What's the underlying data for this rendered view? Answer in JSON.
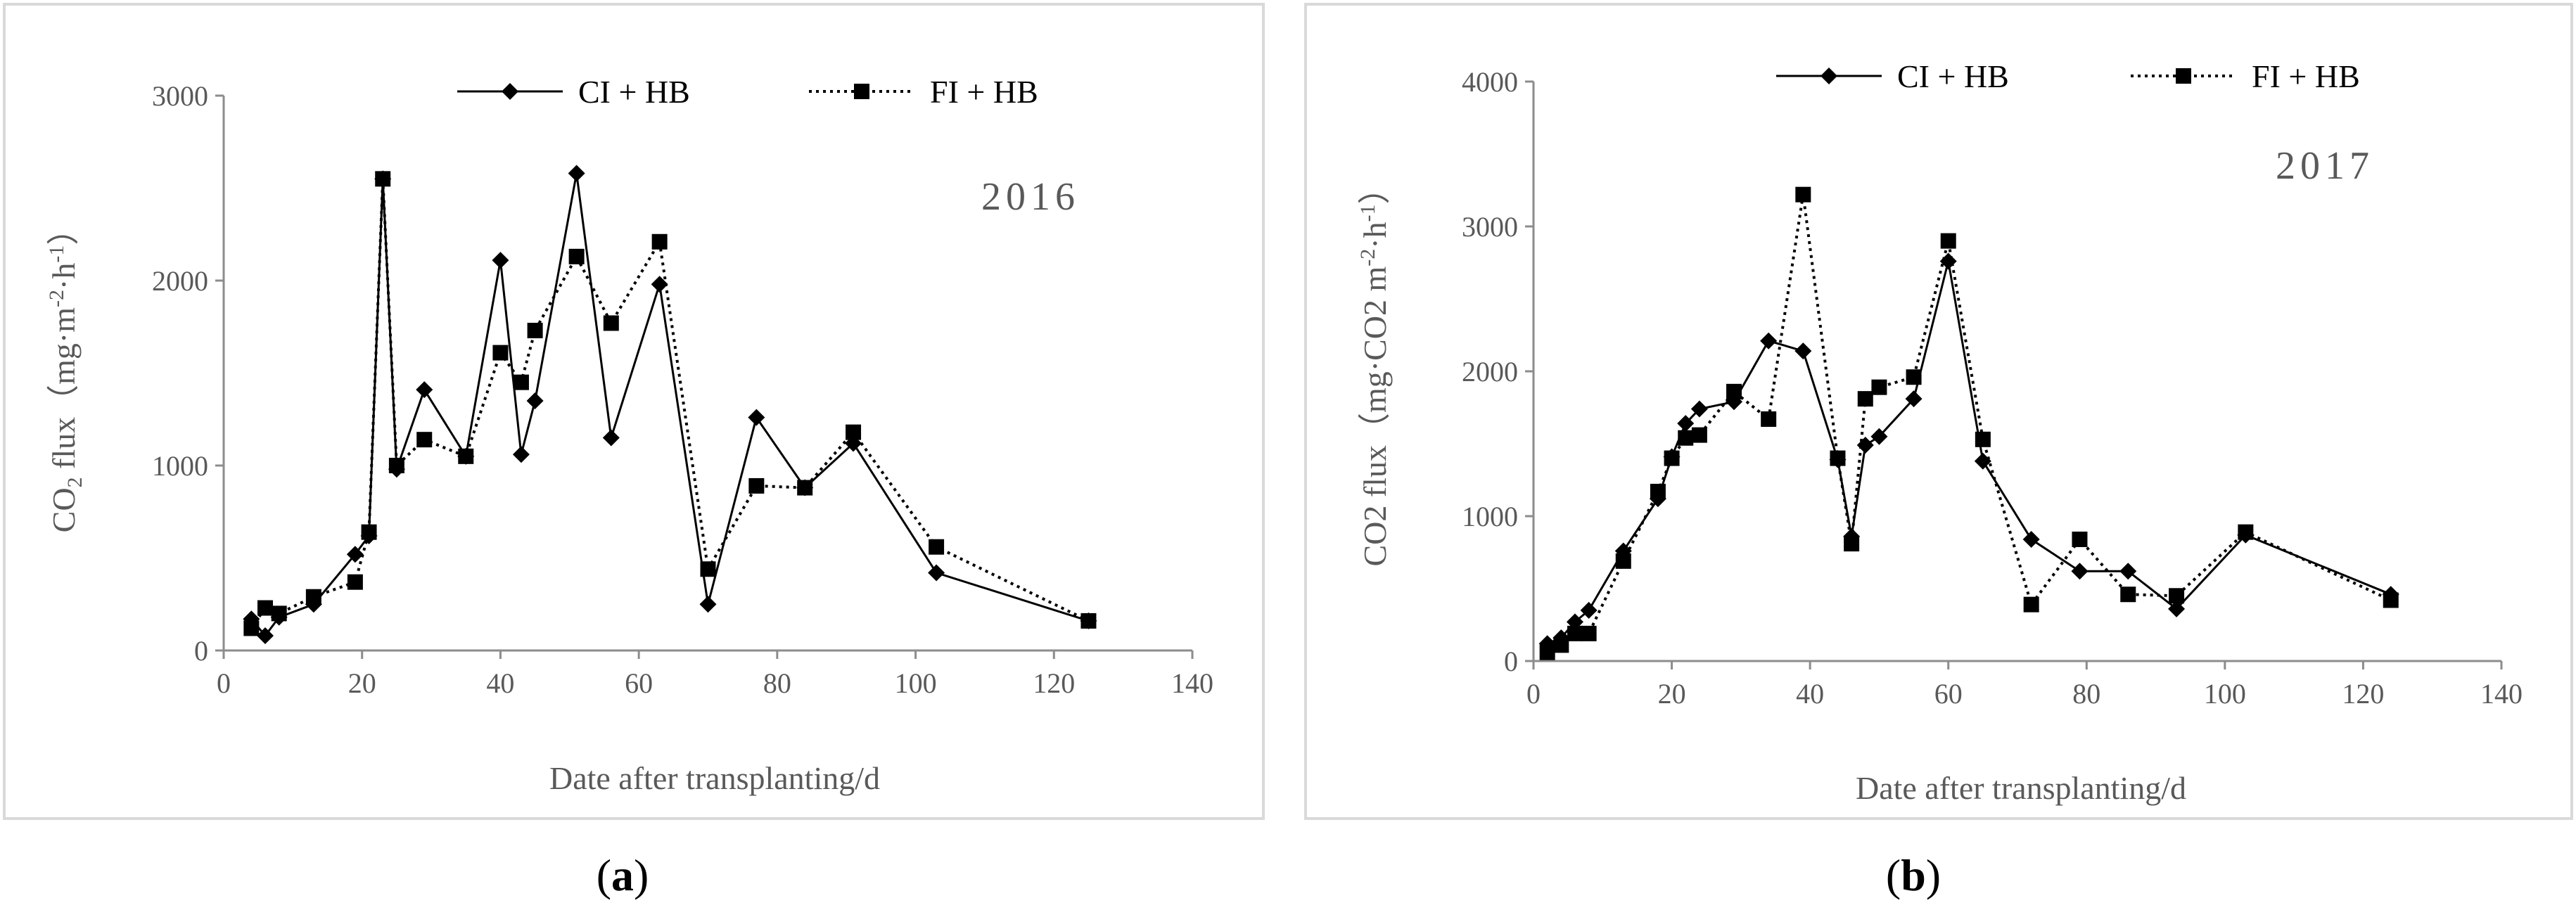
{
  "figure": {
    "border_color": "#d9d9d9",
    "axis_color": "#8c8c8c"
  },
  "chart_data": [
    {
      "type": "line",
      "panel_label": "(a)",
      "panel_label_parts": {
        "open": "(",
        "letter": "a",
        "close": ")"
      },
      "annotation": "2016",
      "xlabel": "Date after transplanting/d",
      "ylabel": {
        "prefix": "CO",
        "sub": "2",
        "middle": " flux（mg·m",
        "sup1": "-2",
        "dot": "·h",
        "sup2": "-1",
        "suffix": "）"
      },
      "xlim": [
        0,
        140
      ],
      "ylim": [
        0,
        3000
      ],
      "xticks": [
        0,
        20,
        40,
        60,
        80,
        100,
        120,
        140
      ],
      "yticks": [
        0,
        1000,
        2000,
        3000
      ],
      "grid": false,
      "legend_position": "top",
      "series": [
        {
          "name": "CI + HB",
          "marker": "diamond",
          "line": "solid",
          "color": "#000000",
          "points": [
            [
              4,
              170
            ],
            [
              6,
              80
            ],
            [
              8,
              180
            ],
            [
              13,
              250
            ],
            [
              19,
              520
            ],
            [
              21,
              620
            ],
            [
              23,
              2550
            ],
            [
              25,
              980
            ],
            [
              29,
              1410
            ],
            [
              35,
              1050
            ],
            [
              40,
              2110
            ],
            [
              43,
              1060
            ],
            [
              45,
              1350
            ],
            [
              51,
              2580
            ],
            [
              56,
              1150
            ],
            [
              63,
              1980
            ],
            [
              70,
              250
            ],
            [
              77,
              1260
            ],
            [
              84,
              880
            ],
            [
              91,
              1120
            ],
            [
              103,
              420
            ],
            [
              125,
              160
            ]
          ]
        },
        {
          "name": "FI + HB",
          "marker": "square",
          "line": "dotted",
          "color": "#000000",
          "points": [
            [
              4,
              120
            ],
            [
              6,
              230
            ],
            [
              8,
              200
            ],
            [
              13,
              290
            ],
            [
              19,
              370
            ],
            [
              21,
              640
            ],
            [
              23,
              2550
            ],
            [
              25,
              1000
            ],
            [
              29,
              1140
            ],
            [
              35,
              1050
            ],
            [
              40,
              1610
            ],
            [
              43,
              1450
            ],
            [
              45,
              1730
            ],
            [
              51,
              2130
            ],
            [
              56,
              1770
            ],
            [
              63,
              2210
            ],
            [
              70,
              440
            ],
            [
              77,
              890
            ],
            [
              84,
              880
            ],
            [
              91,
              1180
            ],
            [
              103,
              560
            ],
            [
              125,
              160
            ]
          ]
        }
      ]
    },
    {
      "type": "line",
      "panel_label": "(b)",
      "panel_label_parts": {
        "open": "(",
        "letter": "b",
        "close": ")"
      },
      "annotation": "2017",
      "xlabel": "Date after transplanting/d",
      "ylabel": {
        "prefix": "CO2 flux（mg·CO2 m",
        "sup1": "-2",
        "dot": "·h",
        "sup2": "-1",
        "suffix": "）"
      },
      "xlim": [
        0,
        140
      ],
      "ylim": [
        0,
        4000
      ],
      "xticks": [
        0,
        20,
        40,
        60,
        80,
        100,
        120,
        140
      ],
      "yticks": [
        0,
        1000,
        2000,
        3000,
        4000
      ],
      "grid": false,
      "legend_position": "top",
      "series": [
        {
          "name": "CI + HB",
          "marker": "diamond",
          "line": "solid",
          "color": "#000000",
          "points": [
            [
              2,
              120
            ],
            [
              4,
              160
            ],
            [
              6,
              270
            ],
            [
              8,
              350
            ],
            [
              13,
              760
            ],
            [
              18,
              1120
            ],
            [
              20,
              1410
            ],
            [
              22,
              1640
            ],
            [
              24,
              1740
            ],
            [
              29,
              1790
            ],
            [
              34,
              2210
            ],
            [
              39,
              2140
            ],
            [
              44,
              1390
            ],
            [
              46,
              860
            ],
            [
              48,
              1490
            ],
            [
              50,
              1550
            ],
            [
              55,
              1810
            ],
            [
              60,
              2760
            ],
            [
              65,
              1380
            ],
            [
              72,
              840
            ],
            [
              79,
              620
            ],
            [
              86,
              620
            ],
            [
              93,
              360
            ],
            [
              103,
              870
            ],
            [
              124,
              460
            ]
          ]
        },
        {
          "name": "FI + HB",
          "marker": "square",
          "line": "dotted",
          "color": "#000000",
          "points": [
            [
              2,
              60
            ],
            [
              4,
              110
            ],
            [
              6,
              190
            ],
            [
              8,
              190
            ],
            [
              13,
              690
            ],
            [
              18,
              1170
            ],
            [
              20,
              1400
            ],
            [
              22,
              1540
            ],
            [
              24,
              1560
            ],
            [
              29,
              1860
            ],
            [
              34,
              1670
            ],
            [
              39,
              3220
            ],
            [
              44,
              1400
            ],
            [
              46,
              810
            ],
            [
              48,
              1810
            ],
            [
              50,
              1890
            ],
            [
              55,
              1960
            ],
            [
              60,
              2900
            ],
            [
              65,
              1530
            ],
            [
              72,
              390
            ],
            [
              79,
              840
            ],
            [
              86,
              460
            ],
            [
              93,
              450
            ],
            [
              103,
              890
            ],
            [
              124,
              420
            ]
          ]
        }
      ]
    }
  ]
}
